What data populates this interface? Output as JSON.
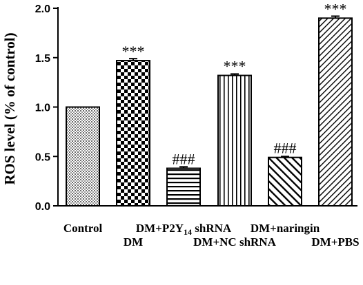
{
  "chart_data": {
    "type": "bar",
    "ylabel": "ROS level (% of control)",
    "ylim": [
      0,
      2.0
    ],
    "yticks": [
      "0.0",
      "0.5",
      "1.0",
      "1.5",
      "2.0"
    ],
    "categories": [
      "Control",
      "DM",
      "DM+P2Y14 shRNA",
      "DM+NC shRNA",
      "DM+naringin",
      "DM+PBS"
    ],
    "values": [
      1.0,
      1.47,
      0.38,
      1.32,
      0.49,
      1.9
    ],
    "errors": [
      0.0,
      0.02,
      0.015,
      0.015,
      0.01,
      0.02
    ],
    "annotations": [
      "",
      "***",
      "###",
      "***",
      "###",
      "***"
    ],
    "patterns": [
      "fine-grid",
      "checkerboard",
      "horizontal-lines",
      "vertical-lines",
      "diagonal-hatch",
      "dense-diagonal-hatch"
    ]
  }
}
